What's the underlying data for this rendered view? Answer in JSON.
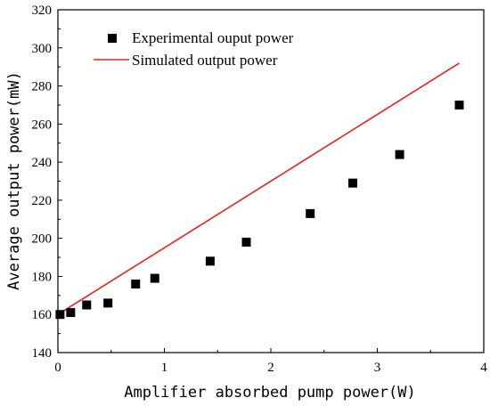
{
  "chart_data": {
    "type": "scatter",
    "xlabel": "Amplifier absorbed pump power(W)",
    "ylabel": "Average output power(mW)",
    "xlim": [
      0,
      4
    ],
    "ylim": [
      140,
      320
    ],
    "x_ticks": [
      "0",
      "1",
      "2",
      "3",
      "4"
    ],
    "y_ticks": [
      "140",
      "160",
      "180",
      "200",
      "220",
      "240",
      "260",
      "280",
      "300",
      "320"
    ],
    "grid": false,
    "legend_position": "top-left",
    "series": [
      {
        "name": "Experimental ouput power",
        "type": "scatter",
        "marker": "square",
        "color": "#000000",
        "x": [
          0.02,
          0.12,
          0.27,
          0.47,
          0.73,
          0.91,
          1.43,
          1.77,
          2.37,
          2.77,
          3.21,
          3.77
        ],
        "y": [
          160,
          161,
          165,
          166,
          176,
          179,
          188,
          198,
          213,
          229,
          244,
          270
        ]
      },
      {
        "name": "Simulated output power",
        "type": "line",
        "color": "#e8201e",
        "x": [
          0,
          3.77
        ],
        "y": [
          160,
          292
        ]
      }
    ]
  }
}
